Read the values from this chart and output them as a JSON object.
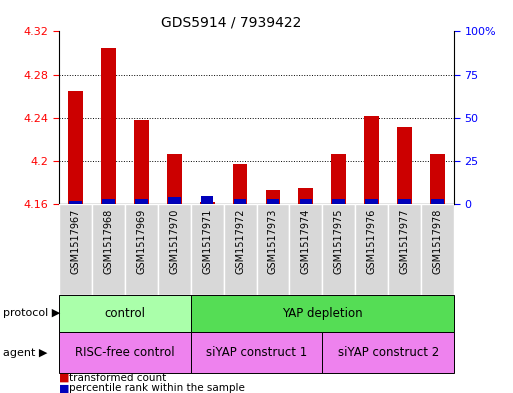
{
  "title": "GDS5914 / 7939422",
  "samples": [
    "GSM1517967",
    "GSM1517968",
    "GSM1517969",
    "GSM1517970",
    "GSM1517971",
    "GSM1517972",
    "GSM1517973",
    "GSM1517974",
    "GSM1517975",
    "GSM1517976",
    "GSM1517977",
    "GSM1517978"
  ],
  "transformed_count": [
    4.265,
    4.305,
    4.238,
    4.207,
    4.162,
    4.197,
    4.173,
    4.175,
    4.207,
    4.242,
    4.232,
    4.207
  ],
  "percentile_rank": [
    2,
    3,
    3,
    4,
    5,
    3,
    3,
    3,
    3,
    3,
    3,
    3
  ],
  "ylim_left": [
    4.16,
    4.32
  ],
  "ylim_right": [
    0,
    100
  ],
  "yticks_left": [
    4.16,
    4.2,
    4.24,
    4.28,
    4.32
  ],
  "yticks_right": [
    0,
    25,
    50,
    75,
    100
  ],
  "ytick_labels_left": [
    "4.16",
    "4.2",
    "4.24",
    "4.28",
    "4.32"
  ],
  "ytick_labels_right": [
    "0",
    "25",
    "50",
    "75",
    "100%"
  ],
  "protocol_groups": [
    {
      "label": "control",
      "start": 0,
      "end": 4,
      "color": "#AAFFAA"
    },
    {
      "label": "YAP depletion",
      "start": 4,
      "end": 12,
      "color": "#55DD55"
    }
  ],
  "agent_groups": [
    {
      "label": "RISC-free control",
      "start": 0,
      "end": 4,
      "color": "#EE82EE"
    },
    {
      "label": "siYAP construct 1",
      "start": 4,
      "end": 8,
      "color": "#EE82EE"
    },
    {
      "label": "siYAP construct 2",
      "start": 8,
      "end": 12,
      "color": "#EE82EE"
    }
  ],
  "bar_color_red": "#CC0000",
  "bar_color_blue": "#0000BB",
  "base_value": 4.16,
  "bar_width": 0.45,
  "col_bg": "#D8D8D8",
  "plot_bg": "#FFFFFF",
  "label_area_color": "#D8D8D8"
}
